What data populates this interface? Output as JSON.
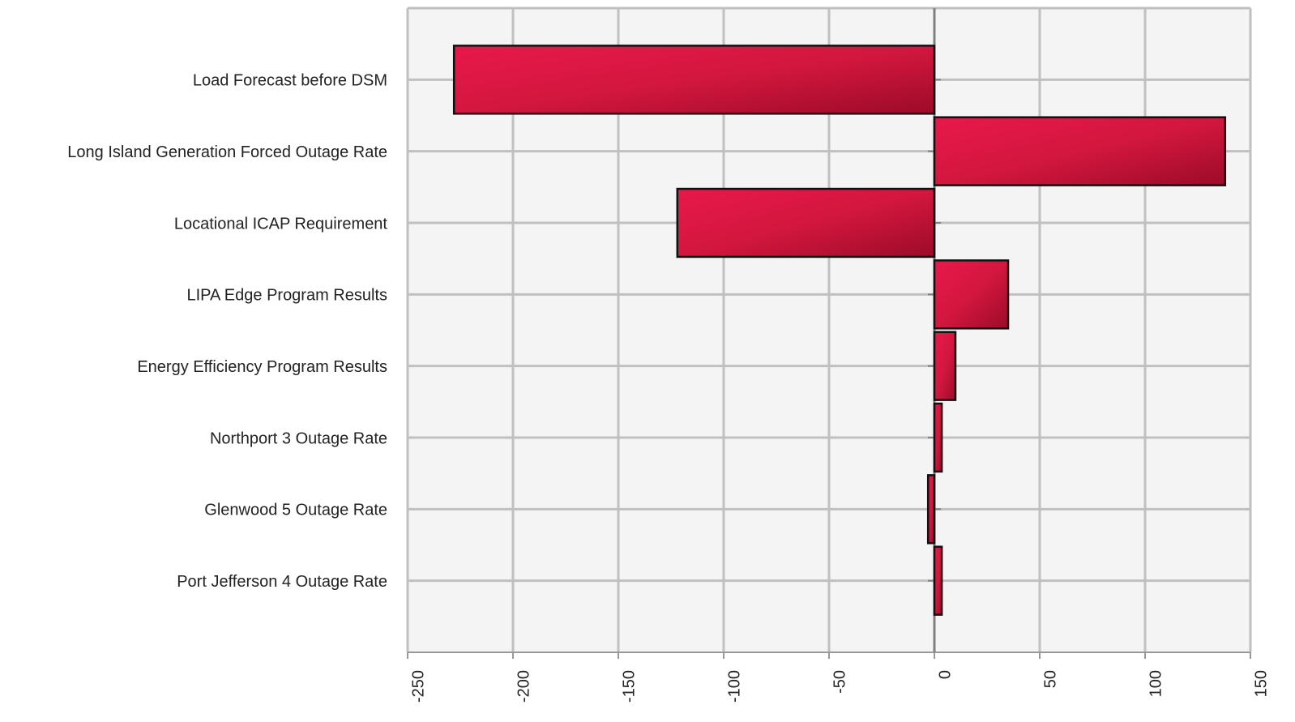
{
  "chart_data": {
    "type": "bar",
    "orientation": "horizontal",
    "categories": [
      "Load Forecast before DSM",
      "Long Island Generation Forced Outage Rate",
      "Locational ICAP Requirement",
      "LIPA Edge Program Results",
      "Energy Efficiency Program Results",
      "Northport 3 Outage Rate",
      "Glenwood 5 Outage Rate",
      "Port Jefferson 4 Outage Rate"
    ],
    "values": [
      -228,
      138,
      -122,
      35,
      10,
      3.5,
      -3,
      3.5
    ],
    "color": "#d3173e",
    "xlim": [
      -250,
      150
    ],
    "xticks": [
      -250,
      -200,
      -150,
      -100,
      -50,
      0,
      50,
      100,
      150
    ],
    "grid": true
  }
}
